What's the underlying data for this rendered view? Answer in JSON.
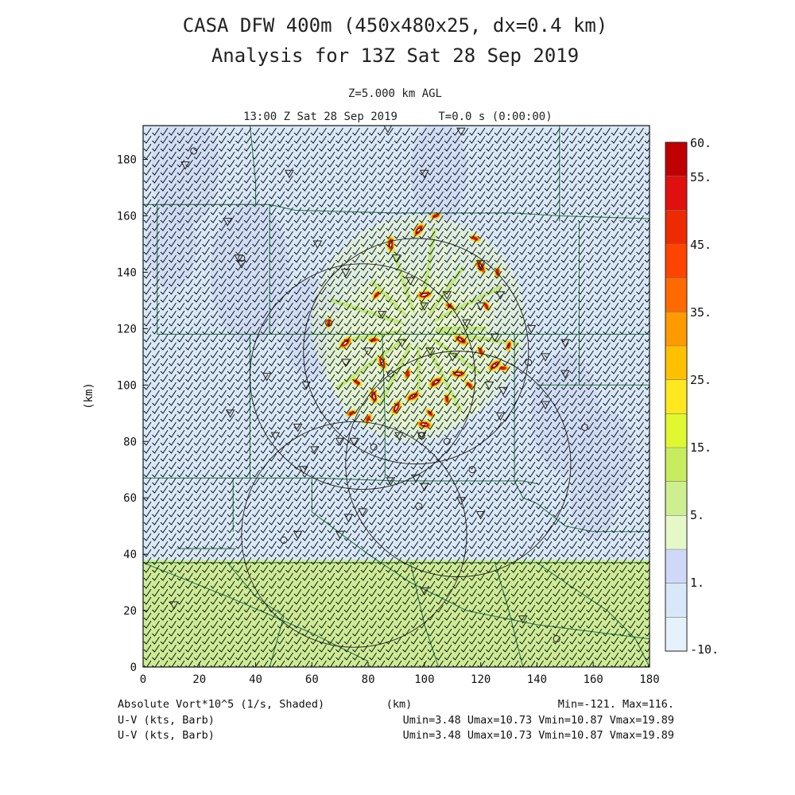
{
  "titles": {
    "line1": "CASA DFW 400m (450x480x25, dx=0.4 km)",
    "line2": "Analysis for 13Z Sat 28 Sep 2019",
    "level": "Z=5.000 km AGL",
    "time_left": "13:00 Z Sat 28 Sep 2019",
    "time_right": "T=0.0 s (0:00:00)"
  },
  "footer": {
    "field_label": "Absolute Vort*10^5 (1/s, Shaded)",
    "xunit": "(km)",
    "minmax": "Min=-121. Max=116.",
    "uv1_label": "U-V (kts, Barb)",
    "uv1_stats": "Umin=3.48 Umax=10.73 Vmin=10.87 Vmax=19.89",
    "uv2_label": "U-V (kts, Barb)",
    "uv2_stats": "Umin=3.48 Umax=10.73 Vmin=10.87 Vmax=19.89"
  },
  "colorbar": {
    "labels": [
      "60.",
      "55.",
      "45.",
      "35.",
      "25.",
      "15.",
      "5.",
      "1.",
      "-10."
    ],
    "colors": [
      "#c00000",
      "#e01010",
      "#ee2a00",
      "#ff4400",
      "#ff6a00",
      "#ff9a00",
      "#ffc000",
      "#ffe820",
      "#e0f830",
      "#c8ec60",
      "#cdef90",
      "#e6f8c8",
      "#cfd8f6",
      "#d8e8f8",
      "#e6f2fb"
    ]
  },
  "colors": {
    "background_field": "#d8e8f8",
    "south_band": "#cdeb95",
    "county_lines": "#2e7d4f",
    "barbs": "#111111"
  },
  "chart_data": {
    "type": "heatmap",
    "xlabel": "(km)",
    "ylabel": "(km)",
    "xlim": [
      0,
      180
    ],
    "ylim": [
      0,
      192
    ],
    "xticks": [
      "0",
      "20",
      "40",
      "60",
      "80",
      "100",
      "120",
      "140",
      "160",
      "180"
    ],
    "yticks": [
      "0",
      "20",
      "40",
      "60",
      "80",
      "100",
      "120",
      "140",
      "160",
      "180"
    ],
    "south_band_top_km": 38,
    "colorbar_min": -10,
    "colorbar_max": 60,
    "field_min": -121,
    "field_max": 116,
    "radar_range_rings": [
      {
        "cx": 97,
        "cy": 112,
        "r": 40
      },
      {
        "cx": 78,
        "cy": 103,
        "r": 40
      },
      {
        "cx": 112,
        "cy": 72,
        "r": 40
      },
      {
        "cx": 75,
        "cy": 47,
        "r": 40
      }
    ],
    "vorticity_maxima": [
      [
        88,
        150,
        "high"
      ],
      [
        98,
        155,
        "high"
      ],
      [
        104,
        160,
        "mid"
      ],
      [
        118,
        152,
        "mid"
      ],
      [
        120,
        142,
        "high"
      ],
      [
        126,
        140,
        "mid"
      ],
      [
        83,
        132,
        "mid"
      ],
      [
        100,
        132,
        "high"
      ],
      [
        109,
        128,
        "mid"
      ],
      [
        122,
        128,
        "mid"
      ],
      [
        66,
        122,
        "mid"
      ],
      [
        72,
        115,
        "high"
      ],
      [
        82,
        116,
        "mid"
      ],
      [
        113,
        116,
        "high"
      ],
      [
        120,
        112,
        "mid"
      ],
      [
        130,
        114,
        "mid"
      ],
      [
        125,
        107,
        "high"
      ],
      [
        128,
        106,
        "mid"
      ],
      [
        76,
        101,
        "mid"
      ],
      [
        85,
        108,
        "high"
      ],
      [
        94,
        104,
        "mid"
      ],
      [
        104,
        101,
        "high"
      ],
      [
        112,
        104,
        "high"
      ],
      [
        116,
        100,
        "mid"
      ],
      [
        82,
        96,
        "high"
      ],
      [
        90,
        92,
        "high"
      ],
      [
        96,
        96,
        "high"
      ],
      [
        100,
        86,
        "high"
      ],
      [
        102,
        90,
        "mid"
      ],
      [
        108,
        95,
        "mid"
      ],
      [
        80,
        88,
        "mid"
      ],
      [
        74,
        90,
        "mid"
      ]
    ]
  }
}
